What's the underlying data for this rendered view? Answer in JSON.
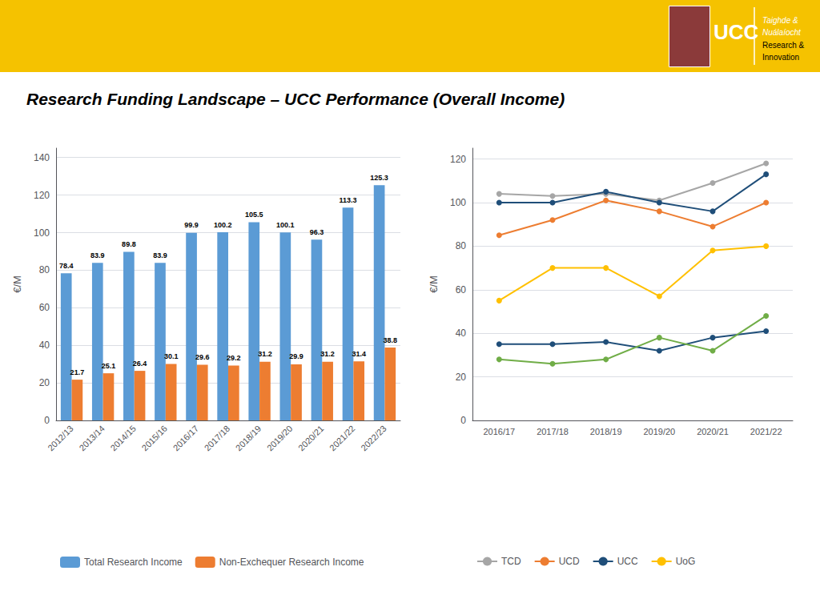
{
  "chart_data": [
    {
      "type": "bar",
      "title": "Research Funding Landscape – UCC Performance (Overall Income)",
      "annotations": [
        "UCC",
        "Taighde &",
        "Nuálaíocht",
        "Research &",
        "Innovation"
      ],
      "categories": [
        "2012/13",
        "2013/14",
        "2014/15",
        "2015/16",
        "2016/17",
        "2017/18",
        "2018/19",
        "2019/20",
        "2020/21",
        "2021/22",
        "2022/23"
      ],
      "series": [
        {
          "name": "Total Research Income",
          "color": "#5B9BD5",
          "values": [
            78.4,
            83.9,
            89.8,
            83.9,
            99.9,
            100.2,
            105.5,
            100.1,
            96.3,
            113.3,
            125.3
          ]
        },
        {
          "name": "Non-Exchequer Research Income",
          "color": "#ED7D31",
          "values": [
            21.7,
            25.1,
            26.4,
            30.1,
            29.6,
            29.2,
            31.2,
            29.9,
            31.2,
            31.4,
            38.8
          ]
        }
      ],
      "ylabel": "€/M",
      "ylim": [
        0,
        145
      ],
      "yticks": [
        0,
        20,
        40,
        60,
        80,
        100,
        120,
        140
      ],
      "grid": true,
      "data_labels": true,
      "legend": "bottom"
    },
    {
      "type": "line",
      "categories": [
        "2016/17",
        "2017/18",
        "2018/19",
        "2019/20",
        "2020/21",
        "2021/22"
      ],
      "series": [
        {
          "name": "TCD",
          "color": "#A6A6A6",
          "values": [
            104,
            103,
            104,
            101,
            109,
            118
          ]
        },
        {
          "name": "UCD",
          "color": "#ED7D31",
          "values": [
            85,
            92,
            101,
            96,
            89,
            100
          ]
        },
        {
          "name": "UCC",
          "color": "#1F4E79",
          "values": [
            100,
            100,
            105,
            100,
            96,
            113
          ]
        },
        {
          "name": "UoG",
          "color": "#FFC000",
          "values": [
            55,
            70,
            70,
            57,
            78,
            80
          ]
        },
        {
          "color": "#1F4E79",
          "values": [
            35,
            35,
            36,
            32,
            38,
            41
          ]
        },
        {
          "color": "#70AD47",
          "values": [
            28,
            26,
            28,
            38,
            32,
            48
          ]
        }
      ],
      "ylabel": "€/M",
      "ylim": [
        0,
        125
      ],
      "yticks": [
        0,
        20,
        40,
        60,
        80,
        100,
        120
      ],
      "grid": true,
      "marker": "circle",
      "legend": "bottom"
    }
  ]
}
